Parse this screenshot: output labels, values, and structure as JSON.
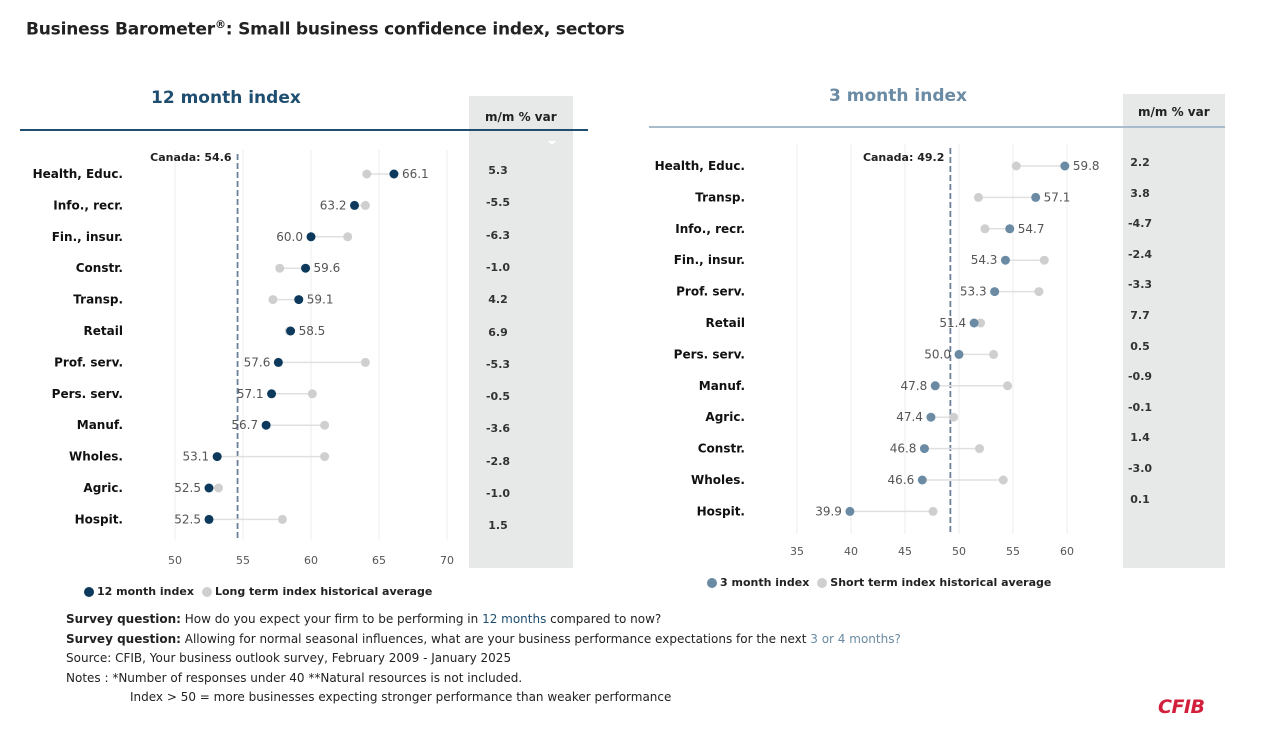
{
  "title": "Business Barometer",
  "title_mark": "®",
  "title_rest": ": Small business confidence index, sectors",
  "colors": {
    "twelve_month": "#0d3a5c",
    "three_month": "#6a8ba3",
    "historical": "#cfcfcf",
    "canada_line": "#6c7f99",
    "var_bg": "#e7e8e8",
    "logo": "#d21f3c"
  },
  "chart_data": [
    {
      "type": "scatter",
      "subtype": "dumbbell",
      "title": "12 month index",
      "var_header": "m/m % var",
      "canada_label": "Canada: 54.6",
      "canada_value": 54.6,
      "xlim": [
        48,
        72
      ],
      "xticks": [
        50,
        55,
        60,
        65,
        70
      ],
      "grid": true,
      "legend": [
        "12 month index",
        "Long term index historical average"
      ],
      "legend_position": "bottom-left",
      "categories": [
        "Health, Educ.",
        "Info., recr.",
        "Fin., insur.",
        "Constr.",
        "Transp.",
        "Retail",
        "Prof. serv.",
        "Pers. serv.",
        "Manuf.",
        "Wholes.",
        "Agric.",
        "Hospit."
      ],
      "series": [
        {
          "name": "12 month index",
          "values": [
            66.1,
            63.2,
            60.0,
            59.6,
            59.1,
            58.5,
            57.6,
            57.1,
            56.7,
            53.1,
            52.5,
            52.5
          ]
        },
        {
          "name": "Long term index historical average",
          "values": [
            64.1,
            64.0,
            62.7,
            57.7,
            57.2,
            58.4,
            64.0,
            60.1,
            61.0,
            61.0,
            53.2,
            57.9
          ]
        }
      ],
      "labels": [
        "66.1",
        "63.2",
        "60.0",
        "59.6",
        "59.1",
        "58.5",
        "57.6",
        "57.1",
        "56.7",
        "53.1",
        "52.5",
        "52.5"
      ],
      "mm_var": [
        "5.3",
        "-5.5",
        "-6.3",
        "-1.0",
        "4.2",
        "6.9",
        "-5.3",
        "-0.5",
        "-3.6",
        "-2.8",
        "-1.0",
        "1.5"
      ]
    },
    {
      "type": "scatter",
      "subtype": "dumbbell",
      "title": "3 month index",
      "var_header": "m/m % var",
      "canada_label": "Canada: 49.2",
      "canada_value": 49.2,
      "xlim": [
        33,
        62
      ],
      "xticks": [
        35,
        40,
        45,
        50,
        55,
        60
      ],
      "grid": true,
      "legend": [
        "3 month index",
        "Short term index historical average"
      ],
      "legend_position": "bottom-left",
      "categories": [
        "Health, Educ.",
        "Transp.",
        "Info., recr.",
        "Fin., insur.",
        "Prof. serv.",
        "Retail",
        "Pers. serv.",
        "Manuf.",
        "Agric.",
        "Constr.",
        "Wholes.",
        "Hospit."
      ],
      "series": [
        {
          "name": "3 month index",
          "values": [
            59.8,
            57.1,
            54.7,
            54.3,
            53.3,
            51.4,
            50.0,
            47.8,
            47.4,
            46.8,
            46.6,
            39.9
          ]
        },
        {
          "name": "Short term index historical average",
          "values": [
            55.3,
            51.8,
            52.4,
            57.9,
            57.4,
            52.0,
            53.2,
            54.5,
            49.5,
            51.9,
            54.1,
            47.6
          ]
        }
      ],
      "labels": [
        "59.8",
        "57.1",
        "54.7",
        "54.3",
        "53.3",
        "51.4",
        "50.0",
        "47.8",
        "47.4",
        "46.8",
        "46.6",
        "39.9"
      ],
      "mm_var": [
        "2.2",
        "3.8",
        "-4.7",
        "-2.4",
        "-3.3",
        "7.7",
        "0.5",
        "-0.9",
        "-0.1",
        "1.4",
        "-3.0",
        "0.1"
      ]
    }
  ],
  "notes": {
    "q1_label": "Survey question:",
    "q1_pre": " How do you expect your firm to be performing in ",
    "q1_hl": "12 months",
    "q1_post": " compared to now?",
    "q2_label": "Survey question:",
    "q2_pre": " Allowing for normal seasonal influences, what are your business performance expectations for the next ",
    "q2_hl": "3 or 4 months?",
    "source": "Source: CFIB, Your business outlook survey, February 2009 - January 2025",
    "notes_line": "Notes :  *Number of responses under 40  **Natural resources is not included.",
    "index_line": "Index > 50 = more businesses expecting stronger performance than weaker performance"
  },
  "logo": "CFIB"
}
